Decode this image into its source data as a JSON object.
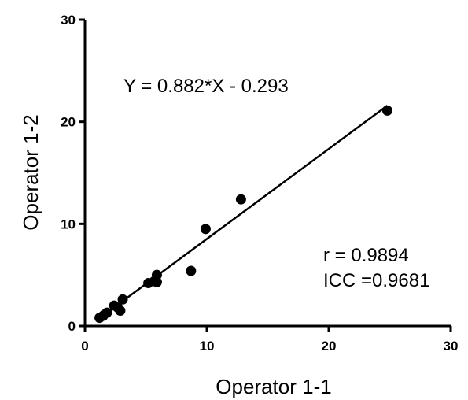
{
  "chart_data": {
    "type": "scatter",
    "xlabel": "Operator 1-1",
    "ylabel": "Operator 1-2",
    "xlim": [
      0,
      30
    ],
    "ylim": [
      0,
      30
    ],
    "xticks": [
      "0",
      "10",
      "20",
      "30"
    ],
    "yticks": [
      "0",
      "10",
      "20",
      "30"
    ],
    "grid": false,
    "annotations": {
      "equation": "Y = 0.882*X - 0.293",
      "r": "r = 0.9894",
      "icc": "ICC =0.9681"
    },
    "regression": {
      "slope": 0.882,
      "intercept": -0.293,
      "x_range": [
        1.2,
        24.8
      ]
    },
    "points": [
      {
        "x": 1.2,
        "y": 0.8
      },
      {
        "x": 1.5,
        "y": 1.0
      },
      {
        "x": 1.8,
        "y": 1.3
      },
      {
        "x": 2.4,
        "y": 2.0
      },
      {
        "x": 2.7,
        "y": 1.8
      },
      {
        "x": 2.9,
        "y": 1.5
      },
      {
        "x": 3.1,
        "y": 2.6
      },
      {
        "x": 5.2,
        "y": 4.2
      },
      {
        "x": 5.7,
        "y": 4.4
      },
      {
        "x": 5.9,
        "y": 4.3
      },
      {
        "x": 5.9,
        "y": 5.0
      },
      {
        "x": 8.7,
        "y": 5.4
      },
      {
        "x": 9.9,
        "y": 9.5
      },
      {
        "x": 12.8,
        "y": 12.4
      },
      {
        "x": 24.8,
        "y": 21.1
      }
    ]
  }
}
